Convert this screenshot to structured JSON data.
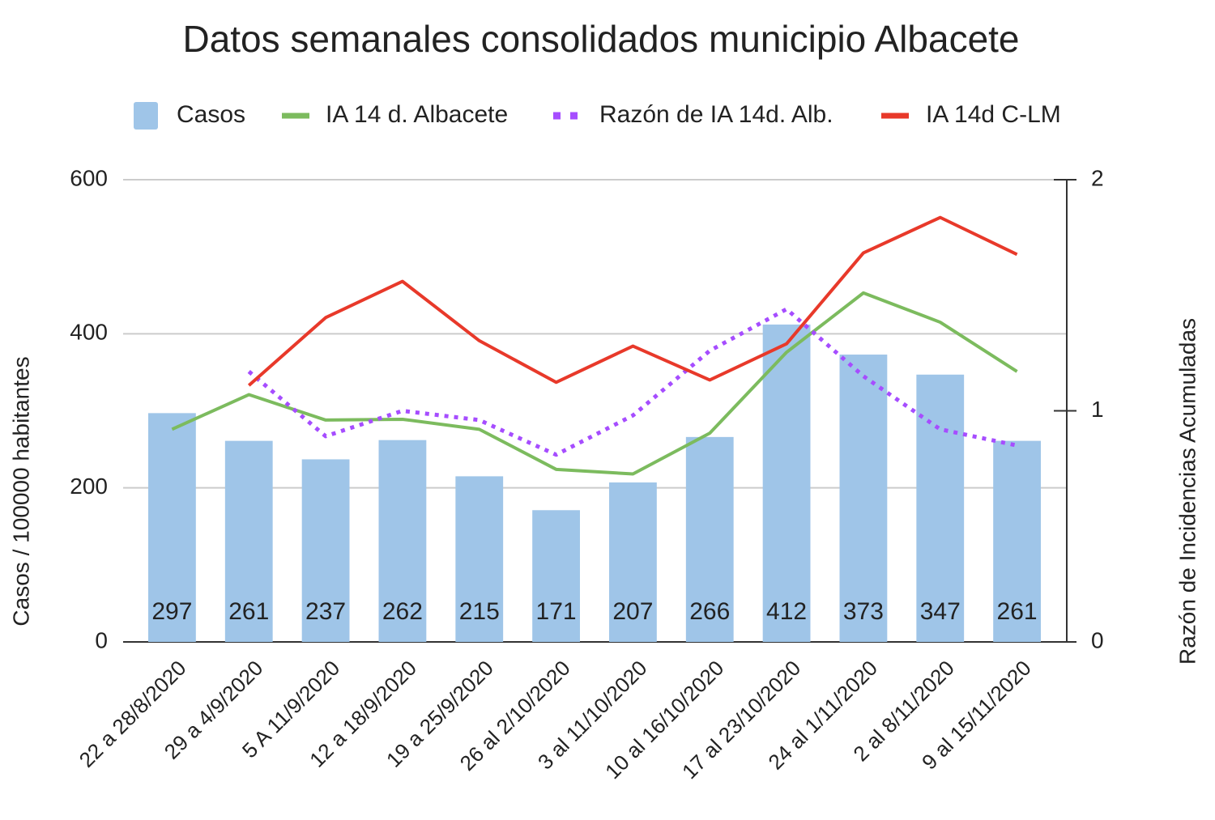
{
  "chart_data": {
    "type": "bar",
    "title": "Datos semanales consolidados municipio Albacete",
    "y_label": "Casos / 100000 habitantes",
    "y2_label": "Razón de Incidencias Acumuladas",
    "categories": [
      "22 a 28/8/2020",
      "29 a 4/9/2020",
      "5 A 11/9/2020",
      "12 a 18/9/2020",
      "19 a 25/9/2020",
      "26 al 2/10/2020",
      "3 al 11/10/2020",
      "10 al 16/10/2020",
      "17 al 23/10/2020",
      "24 al 1/11/2020",
      "2 al 8/11/2020",
      "9 al 15/11/2020"
    ],
    "series": [
      {
        "name": "Casos",
        "type": "bar",
        "color": "#9fc5e8",
        "values": [
          297,
          261,
          237,
          262,
          215,
          171,
          207,
          266,
          412,
          373,
          347,
          261
        ]
      },
      {
        "name": "IA 14 d. Albacete",
        "type": "line",
        "color": "#7cbb5e",
        "values": [
          276,
          321,
          288,
          289,
          276,
          224,
          218,
          271,
          376,
          453,
          415,
          351
        ]
      },
      {
        "name": "Razón de IA 14d. Alb.",
        "type": "line",
        "style": "dotted",
        "axis": "y2",
        "color": "#a64dff",
        "values": [
          null,
          1.17,
          0.89,
          1.0,
          0.96,
          0.81,
          0.98,
          1.26,
          1.44,
          1.15,
          0.92,
          0.85
        ]
      },
      {
        "name": "IA 14d C-LM",
        "type": "line",
        "color": "#e8392a",
        "values": [
          null,
          333,
          421,
          468,
          391,
          337,
          384,
          340,
          387,
          505,
          551,
          503
        ]
      }
    ],
    "ylim": [
      0,
      600
    ],
    "yticks": [
      0,
      200,
      400,
      600
    ],
    "y2lim": [
      0,
      2
    ],
    "y2ticks": [
      0,
      1,
      2
    ],
    "grid": true,
    "legend": "top"
  }
}
